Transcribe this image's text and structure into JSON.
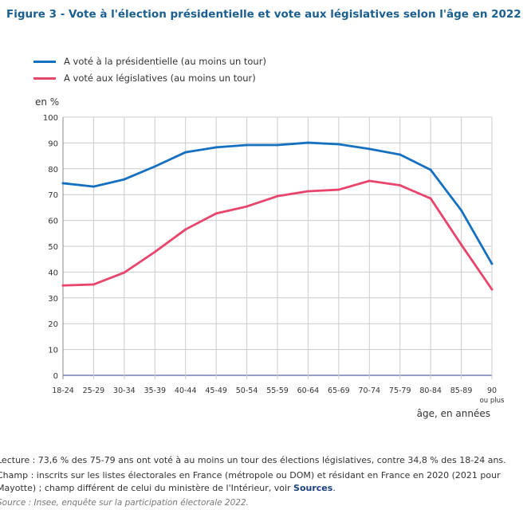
{
  "title": "Figure 3 - Vote à l'élection présidentielle et vote aux législatives selon l'âge en 2022",
  "chart_data": {
    "type": "line",
    "ylabel": "en %",
    "xlabel": "âge, en années",
    "ylim": [
      0,
      100
    ],
    "yticks": [
      0,
      10,
      20,
      30,
      40,
      50,
      60,
      70,
      80,
      90,
      100
    ],
    "grid": true,
    "legend_position": "top-left",
    "categories": [
      "18-24",
      "25-29",
      "30-34",
      "35-39",
      "40-44",
      "45-49",
      "50-54",
      "55-59",
      "60-64",
      "65-69",
      "70-74",
      "75-79",
      "80-84",
      "85-89",
      "90"
    ],
    "last_category_sub": "ou plus",
    "series": [
      {
        "name": "A voté à la présidentielle (au moins un tour)",
        "color": "#1570c0",
        "values": [
          74.4,
          73.1,
          75.9,
          80.9,
          86.4,
          88.3,
          89.2,
          89.2,
          90.1,
          89.5,
          87.7,
          85.5,
          79.6,
          63.9,
          43.2
        ]
      },
      {
        "name": "A voté aux législatives (au moins un tour)",
        "color": "#e8456d",
        "values": [
          34.8,
          35.2,
          39.8,
          47.8,
          56.5,
          62.7,
          65.4,
          69.4,
          71.3,
          71.9,
          75.3,
          73.6,
          68.5,
          50.6,
          33.3
        ]
      }
    ]
  },
  "footer": {
    "lecture": "Lecture : 73,6 % des 75-79 ans ont voté à au moins un tour des élections législatives, contre 34,8 % des 18-24 ans.",
    "champ1": "Champ : inscrits sur les listes électorales en France (métropole ou DOM) et résidant en France en 2020 (2021 pour",
    "champ2": "Mayotte) ; champ différent de celui du ministère de l'Intérieur, voir ",
    "sources_link": "Sources",
    "champ_end": ".",
    "source": "Source : Insee, enquête sur la participation électorale 2022."
  }
}
